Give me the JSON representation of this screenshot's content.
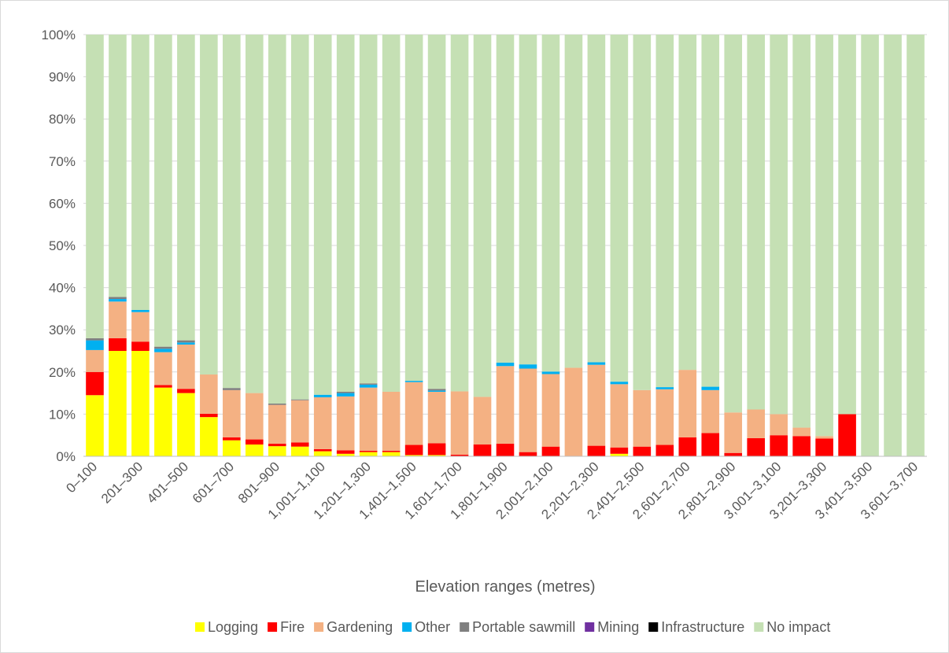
{
  "chart_data": {
    "type": "stacked_bar_100",
    "x_label": "Elevation ranges (metres)",
    "categories": [
      "0–100",
      null,
      "201–300",
      null,
      "401–500",
      null,
      "601–700",
      null,
      "801–900",
      null,
      "1,001–1,100",
      null,
      "1,201–1,300",
      null,
      "1,401–1,500",
      null,
      "1,601–1,700",
      null,
      "1,801–1,900",
      null,
      "2,001–2,100",
      null,
      "2,201–2,300",
      null,
      "2,401–2,500",
      null,
      "2,601–2,700",
      null,
      "2,801–2,900",
      null,
      "3,001–3,100",
      null,
      "3,201–3,300",
      null,
      "3,401–3,500",
      null,
      "3,601–3,700"
    ],
    "series": [
      {
        "name": "Logging",
        "color": "#ffff00",
        "values": [
          14.5,
          25,
          25,
          16.3,
          15,
          9.3,
          3.8,
          2.8,
          2.4,
          2.3,
          1.2,
          0.6,
          1,
          1,
          0.3,
          0.3,
          0,
          0,
          0,
          0,
          0,
          0,
          0,
          0.6,
          0,
          0,
          0,
          0,
          0,
          0,
          0,
          0,
          0,
          0,
          0,
          0,
          0
        ]
      },
      {
        "name": "Fire",
        "color": "#ff0000",
        "values": [
          5.5,
          3,
          2.2,
          0.6,
          1,
          0.8,
          0.7,
          1.2,
          0.6,
          1,
          0.5,
          0.8,
          0.3,
          0.3,
          2.4,
          2.8,
          0.4,
          2.8,
          3,
          1,
          2.3,
          0,
          2.5,
          1.5,
          2.3,
          2.7,
          4.5,
          5.5,
          0.8,
          4.3,
          5,
          4.8,
          4.2,
          10,
          0,
          0,
          0
        ]
      },
      {
        "name": "Gardening",
        "color": "#f4b183",
        "values": [
          5.2,
          8.7,
          7,
          7.8,
          10.5,
          9.3,
          11.2,
          11,
          9.2,
          10,
          12.3,
          12.8,
          15,
          14,
          14.9,
          12.2,
          15,
          11.3,
          18.4,
          19.8,
          17.2,
          21,
          19.2,
          15,
          13.4,
          13.2,
          16,
          10.2,
          9.6,
          6.8,
          5,
          2,
          0.6,
          0,
          0,
          0,
          0
        ]
      },
      {
        "name": "Other",
        "color": "#00b0f0",
        "values": [
          2.3,
          0.6,
          0.5,
          0.8,
          0.5,
          0,
          0,
          0,
          0,
          0,
          0.6,
          0.8,
          0.7,
          0,
          0.3,
          0.3,
          0,
          0,
          0.8,
          1,
          0.6,
          0,
          0.6,
          0.6,
          0,
          0.5,
          0,
          0.8,
          0,
          0,
          0,
          0,
          0,
          0,
          0,
          0,
          0
        ]
      },
      {
        "name": "Portable sawmill",
        "color": "#7f7f7f",
        "values": [
          0.5,
          0.5,
          0,
          0.5,
          0.5,
          0,
          0.5,
          0,
          0.3,
          0.2,
          0,
          0.3,
          0.3,
          0,
          0,
          0.4,
          0,
          0,
          0,
          0,
          0,
          0,
          0,
          0,
          0,
          0,
          0,
          0,
          0,
          0,
          0,
          0,
          0,
          0,
          0,
          0,
          0
        ]
      },
      {
        "name": "Mining",
        "color": "#7030a0",
        "values": [
          0,
          0,
          0,
          0,
          0,
          0,
          0,
          0,
          0,
          0,
          0,
          0,
          0,
          0,
          0,
          0,
          0,
          0,
          0,
          0,
          0,
          0,
          0,
          0,
          0,
          0,
          0,
          0,
          0,
          0,
          0,
          0,
          0,
          0,
          0,
          0,
          0
        ]
      },
      {
        "name": "Infrastructure",
        "color": "#000000",
        "values": [
          0,
          0,
          0,
          0,
          0,
          0,
          0,
          0,
          0,
          0,
          0,
          0,
          0,
          0,
          0,
          0,
          0,
          0,
          0,
          0,
          0,
          0,
          0,
          0,
          0,
          0,
          0,
          0,
          0,
          0,
          0,
          0,
          0,
          0,
          0,
          0,
          0
        ]
      },
      {
        "name": "No impact",
        "color": "#c5e0b4",
        "values": [
          72,
          62.2,
          65.3,
          74,
          72.5,
          80.6,
          83.8,
          85,
          87.5,
          86.5,
          85.4,
          84.7,
          82.7,
          84.7,
          82.1,
          84,
          84.6,
          85.9,
          77.8,
          78.2,
          79.9,
          79,
          77.7,
          82.3,
          84.3,
          83.6,
          79.5,
          83.5,
          89.6,
          88.9,
          90,
          93.2,
          95.2,
          90,
          100,
          100,
          100
        ]
      }
    ],
    "ylim": [
      0,
      100
    ],
    "yticks": [
      {
        "value": 0,
        "label": "0%"
      },
      {
        "value": 10,
        "label": "10%"
      },
      {
        "value": 20,
        "label": "20%"
      },
      {
        "value": 30,
        "label": "30%"
      },
      {
        "value": 40,
        "label": "40%"
      },
      {
        "value": 50,
        "label": "50%"
      },
      {
        "value": 60,
        "label": "60%"
      },
      {
        "value": 70,
        "label": "70%"
      },
      {
        "value": 80,
        "label": "80%"
      },
      {
        "value": 90,
        "label": "90%"
      },
      {
        "value": 100,
        "label": "100%"
      }
    ],
    "grid": true,
    "legend": "bottom"
  }
}
